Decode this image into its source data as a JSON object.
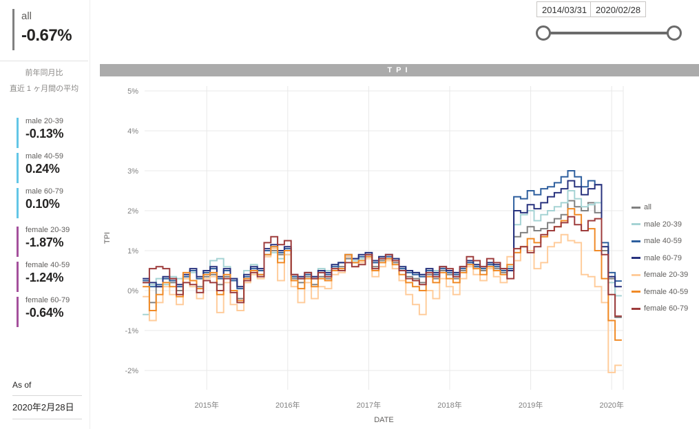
{
  "header_bar_color": "#ABABAB",
  "date_filter": {
    "start_date": "2014/03/31",
    "end_date": "2020/02/28"
  },
  "sidebar": {
    "summary": {
      "label": "all",
      "value": "-0.67%",
      "accent_color": "#808080"
    },
    "subtitle_lines": [
      "前年同月比",
      "直近 1 ヶ月間の平均"
    ],
    "cards": [
      {
        "label": "male 20-39",
        "value": "-0.13%",
        "accent_color": "#62C6E6"
      },
      {
        "label": "male 40-59",
        "value": "0.24%",
        "accent_color": "#62C6E6"
      },
      {
        "label": "male 60-79",
        "value": "0.10%",
        "accent_color": "#62C6E6"
      },
      {
        "label": "female 20-39",
        "value": "-1.87%",
        "accent_color": "#A4509C"
      },
      {
        "label": "female 40-59",
        "value": "-1.24%",
        "accent_color": "#A4509C"
      },
      {
        "label": "female 60-79",
        "value": "-0.64%",
        "accent_color": "#A4509C"
      }
    ],
    "as_of_label": "As of",
    "as_of_value": "2020年2月28日"
  },
  "chart_data": {
    "type": "line",
    "step": true,
    "title": "TPI",
    "xlabel": "DATE",
    "ylabel": "TPI",
    "x_start": "2014-04",
    "x_end": "2020-02",
    "x_frequency": "monthly",
    "ylim": [
      -2.5,
      5.3
    ],
    "grid": true,
    "legend_position": "right",
    "y_ticks": [
      {
        "label": "5%",
        "value": 5
      },
      {
        "label": "4%",
        "value": 4
      },
      {
        "label": "3%",
        "value": 3
      },
      {
        "label": "2%",
        "value": 2
      },
      {
        "label": "1%",
        "value": 1
      },
      {
        "label": "0%",
        "value": 0
      },
      {
        "label": "-1%",
        "value": -1
      },
      {
        "label": "-2%",
        "value": -2
      }
    ],
    "x_ticks": [
      {
        "label": "2015年",
        "month_index": 9
      },
      {
        "label": "2016年",
        "month_index": 21
      },
      {
        "label": "2017年",
        "month_index": 33
      },
      {
        "label": "2018年",
        "month_index": 45
      },
      {
        "label": "2019年",
        "month_index": 57
      },
      {
        "label": "2020年",
        "month_index": 69
      }
    ],
    "series": [
      {
        "name": "all",
        "color": "#808080",
        "values": [
          0.2,
          -0.3,
          0.1,
          0.3,
          0.2,
          0.0,
          0.3,
          0.25,
          0.1,
          0.35,
          0.4,
          0.15,
          0.35,
          0.0,
          -0.2,
          0.3,
          0.5,
          0.4,
          0.9,
          1.0,
          0.9,
          1.0,
          0.3,
          0.2,
          0.35,
          0.15,
          0.35,
          0.3,
          0.5,
          0.6,
          0.8,
          0.7,
          0.8,
          0.85,
          0.6,
          0.75,
          0.8,
          0.7,
          0.5,
          0.35,
          0.3,
          0.2,
          0.4,
          0.3,
          0.5,
          0.4,
          0.3,
          0.5,
          0.7,
          0.6,
          0.5,
          0.65,
          0.55,
          0.45,
          0.5,
          1.35,
          1.45,
          1.6,
          1.5,
          1.55,
          1.7,
          1.8,
          1.9,
          2.25,
          2.1,
          2.0,
          2.2,
          1.95,
          1.0,
          0.3,
          -0.67
        ]
      },
      {
        "name": "male 20-39",
        "color": "#A5D3D4",
        "values": [
          -0.6,
          0.15,
          0.3,
          0.15,
          0.35,
          0.3,
          0.3,
          0.45,
          0.3,
          0.5,
          0.75,
          0.8,
          0.6,
          0.3,
          0.1,
          0.5,
          0.65,
          0.55,
          0.9,
          0.95,
          0.8,
          0.9,
          0.35,
          0.3,
          0.45,
          0.35,
          0.55,
          0.5,
          0.65,
          0.7,
          0.85,
          0.75,
          0.8,
          0.9,
          0.7,
          0.85,
          0.9,
          0.8,
          0.6,
          0.5,
          0.45,
          0.4,
          0.55,
          0.5,
          0.6,
          0.5,
          0.45,
          0.6,
          0.75,
          0.65,
          0.55,
          0.7,
          0.6,
          0.55,
          0.6,
          1.65,
          1.9,
          2.0,
          1.75,
          1.9,
          2.0,
          2.1,
          2.2,
          2.5,
          2.3,
          2.1,
          2.15,
          2.2,
          1.1,
          0.2,
          -0.13
        ]
      },
      {
        "name": "male 40-59",
        "color": "#2E5F9E",
        "values": [
          0.25,
          0.1,
          0.15,
          0.3,
          0.25,
          0.1,
          0.35,
          0.5,
          0.3,
          0.45,
          0.55,
          0.3,
          0.5,
          0.25,
          0.05,
          0.35,
          0.55,
          0.5,
          1.0,
          1.1,
          0.95,
          1.05,
          0.35,
          0.3,
          0.4,
          0.3,
          0.45,
          0.4,
          0.6,
          0.7,
          0.9,
          0.8,
          0.85,
          0.9,
          0.7,
          0.8,
          0.85,
          0.75,
          0.55,
          0.45,
          0.4,
          0.35,
          0.5,
          0.4,
          0.55,
          0.45,
          0.4,
          0.55,
          0.7,
          0.6,
          0.55,
          0.65,
          0.6,
          0.5,
          0.55,
          2.35,
          2.3,
          2.5,
          2.4,
          2.55,
          2.6,
          2.7,
          2.85,
          3.0,
          2.85,
          2.6,
          2.75,
          2.65,
          1.2,
          0.45,
          0.24
        ]
      },
      {
        "name": "male 60-79",
        "color": "#28327E",
        "values": [
          0.3,
          0.2,
          0.1,
          0.35,
          0.3,
          0.15,
          0.4,
          0.55,
          0.35,
          0.5,
          0.6,
          0.35,
          0.55,
          0.3,
          0.1,
          0.4,
          0.6,
          0.55,
          1.05,
          1.15,
          1.0,
          1.1,
          0.4,
          0.35,
          0.45,
          0.35,
          0.5,
          0.45,
          0.65,
          0.7,
          0.85,
          0.8,
          0.9,
          0.95,
          0.75,
          0.85,
          0.9,
          0.8,
          0.6,
          0.5,
          0.45,
          0.4,
          0.55,
          0.45,
          0.6,
          0.5,
          0.45,
          0.6,
          0.75,
          0.65,
          0.6,
          0.7,
          0.65,
          0.55,
          0.5,
          2.0,
          1.95,
          2.15,
          2.05,
          2.2,
          2.35,
          2.45,
          2.55,
          2.75,
          2.6,
          2.4,
          2.55,
          2.65,
          1.1,
          0.35,
          0.1
        ]
      },
      {
        "name": "female 20-39",
        "color": "#FFCC9B",
        "values": [
          -0.15,
          -0.75,
          -0.3,
          0.1,
          -0.1,
          -0.35,
          0.3,
          0.1,
          -0.2,
          0.3,
          0.35,
          -0.55,
          0.2,
          -0.35,
          -0.5,
          0.2,
          0.4,
          0.3,
          0.85,
          1.05,
          0.25,
          0.9,
          0.1,
          -0.3,
          0.2,
          -0.2,
          0.1,
          0.05,
          0.4,
          0.45,
          0.85,
          0.6,
          0.7,
          0.8,
          0.35,
          0.6,
          0.75,
          0.55,
          0.25,
          -0.1,
          -0.35,
          -0.6,
          0.0,
          -0.2,
          0.3,
          0.1,
          -0.1,
          0.3,
          0.6,
          0.4,
          0.25,
          0.55,
          0.35,
          0.2,
          0.85,
          0.75,
          1.1,
          1.0,
          0.55,
          0.7,
          1.1,
          1.2,
          1.4,
          1.25,
          1.2,
          0.4,
          0.35,
          0.1,
          -0.3,
          -2.05,
          -1.87
        ]
      },
      {
        "name": "female 40-59",
        "color": "#F08A26",
        "values": [
          0.1,
          -0.5,
          -0.1,
          0.2,
          0.1,
          -0.15,
          0.45,
          0.25,
          0.05,
          0.4,
          0.45,
          -0.1,
          0.4,
          0.0,
          -0.25,
          0.3,
          0.5,
          0.4,
          0.9,
          1.1,
          0.7,
          1.0,
          0.25,
          0.05,
          0.3,
          0.1,
          0.3,
          0.25,
          0.5,
          0.55,
          0.9,
          0.7,
          0.75,
          0.85,
          0.5,
          0.7,
          0.8,
          0.65,
          0.4,
          0.2,
          0.1,
          0.0,
          0.35,
          0.2,
          0.45,
          0.3,
          0.2,
          0.45,
          0.65,
          0.55,
          0.4,
          0.6,
          0.5,
          0.4,
          0.65,
          0.95,
          1.1,
          1.3,
          1.2,
          1.35,
          1.5,
          1.6,
          1.75,
          2.05,
          1.9,
          1.5,
          1.55,
          1.0,
          0.3,
          -0.75,
          -1.24
        ]
      },
      {
        "name": "female 60-79",
        "color": "#9D3B3B",
        "values": [
          0.2,
          0.55,
          0.6,
          0.55,
          0.3,
          -0.1,
          0.2,
          0.15,
          -0.05,
          0.25,
          0.2,
          0.0,
          0.3,
          -0.05,
          -0.3,
          0.25,
          0.45,
          0.35,
          1.2,
          1.35,
          1.15,
          1.25,
          0.4,
          0.3,
          0.45,
          0.3,
          0.45,
          0.35,
          0.55,
          0.5,
          0.7,
          0.6,
          0.65,
          0.9,
          0.55,
          0.8,
          0.9,
          0.75,
          0.5,
          0.3,
          0.25,
          0.15,
          0.45,
          0.35,
          0.6,
          0.55,
          0.35,
          0.6,
          0.85,
          0.75,
          0.6,
          0.8,
          0.7,
          0.55,
          0.3,
          1.05,
          1.1,
          0.95,
          1.1,
          1.4,
          1.5,
          1.6,
          1.7,
          1.85,
          1.65,
          1.5,
          1.75,
          1.8,
          0.9,
          -0.1,
          -0.64
        ]
      }
    ]
  }
}
